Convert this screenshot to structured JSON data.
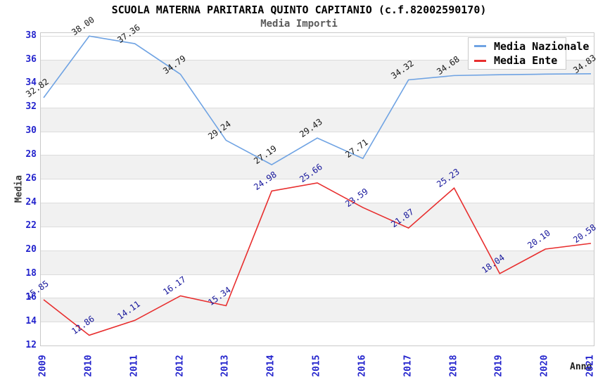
{
  "header": {
    "title": "SCUOLA MATERNA PARITARIA QUINTO CAPITANIO (c.f.82002590170)",
    "subtitle": "Media Importi"
  },
  "legend": {
    "items": [
      {
        "label": "Media Nazionale",
        "color": "#6fa3e3"
      },
      {
        "label": "Media Ente",
        "color": "#e82e2e"
      }
    ]
  },
  "axes": {
    "y_label": "Media",
    "x_label": "Anno",
    "y_ticks": [
      "38",
      "36",
      "34",
      "32",
      "30",
      "28",
      "26",
      "24",
      "22",
      "20",
      "18",
      "16",
      "14",
      "12"
    ],
    "x_ticks": [
      "2009",
      "2010",
      "2011",
      "2012",
      "2013",
      "2014",
      "2015",
      "2016",
      "2017",
      "2018",
      "2019",
      "2020",
      "2021"
    ]
  },
  "colors": {
    "nazionale_line": "#6fa3e3",
    "ente_line": "#e82e2e",
    "nazionale_label": "#1a1a1a",
    "ente_label": "#16169b",
    "tick_label": "#2424cd",
    "band_gray": "#f1f1f1",
    "gridline": "#dcdcdc",
    "plot_border": "#c9c9c9"
  },
  "chart_data": {
    "type": "line",
    "title": "SCUOLA MATERNA PARITARIA QUINTO CAPITANIO (c.f.82002590170)",
    "subtitle": "Media Importi",
    "xlabel": "Anno",
    "ylabel": "Media",
    "x": [
      2009,
      2010,
      2011,
      2012,
      2013,
      2014,
      2015,
      2016,
      2017,
      2018,
      2019,
      2020,
      2021
    ],
    "ylim": [
      12,
      38.25
    ],
    "y_tick_step": 2,
    "grid": "horizontal-bands",
    "legend_position": "top-right-inside",
    "series": [
      {
        "name": "Media Nazionale",
        "color": "#6fa3e3",
        "label_color": "#1a1a1a",
        "values": [
          32.82,
          38.0,
          37.36,
          34.79,
          29.24,
          27.19,
          29.43,
          27.71,
          34.32,
          34.68,
          34.75,
          34.8,
          34.83
        ],
        "labels": [
          "32.82",
          "38.00",
          "37.36",
          "34.79",
          "29.24",
          "27.19",
          "29.43",
          "27.71",
          "34.32",
          "34.68",
          "",
          "",
          "34.83"
        ]
      },
      {
        "name": "Media Ente",
        "color": "#e82e2e",
        "label_color": "#16169b",
        "values": [
          15.85,
          12.86,
          14.11,
          16.17,
          15.34,
          24.98,
          25.66,
          23.59,
          21.87,
          25.23,
          18.04,
          20.1,
          20.58
        ],
        "labels": [
          "15.85",
          "12.86",
          "14.11",
          "16.17",
          "15.34",
          "24.98",
          "25.66",
          "23.59",
          "21.87",
          "25.23",
          "18.04",
          "20.10",
          "20.58"
        ]
      }
    ]
  }
}
